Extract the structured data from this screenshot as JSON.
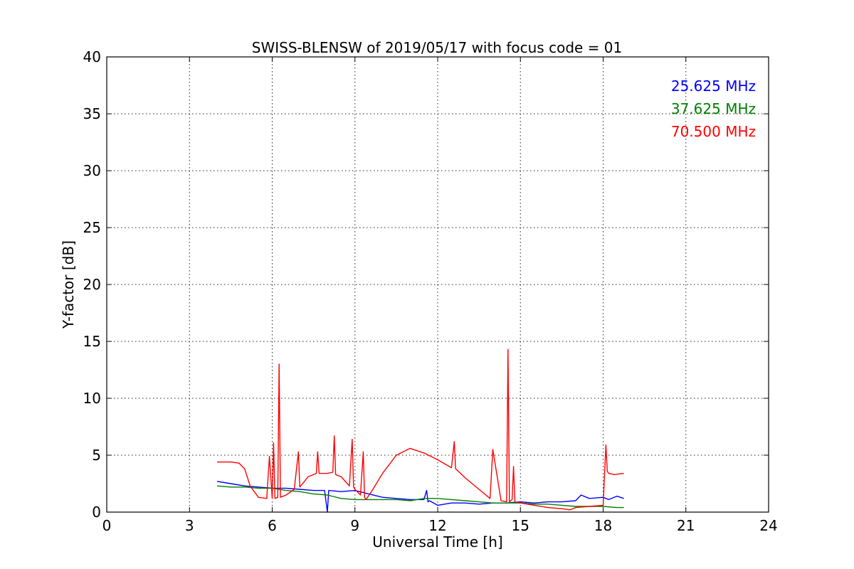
{
  "chart_data": {
    "type": "line",
    "title": "SWISS-BLENSW of 2019/05/17 with focus code = 01",
    "xlabel": "Universal Time [h]",
    "ylabel": "Y-factor [dB]",
    "xlim": [
      0,
      24
    ],
    "ylim": [
      0,
      40
    ],
    "xticks": [
      0,
      3,
      6,
      9,
      12,
      15,
      18,
      21,
      24
    ],
    "yticks": [
      0,
      5,
      10,
      15,
      20,
      25,
      30,
      35,
      40
    ],
    "grid": true,
    "legend_position": "top-right",
    "series": [
      {
        "name": "25.625 MHz",
        "color": "#0000ff",
        "x": [
          4.0,
          4.5,
          5.0,
          5.5,
          6.0,
          6.5,
          7.0,
          7.5,
          7.9,
          8.0,
          8.05,
          8.5,
          9.0,
          9.5,
          10.0,
          10.5,
          11.0,
          11.5,
          11.6,
          11.65,
          11.7,
          12.0,
          12.5,
          13.0,
          13.5,
          14.0,
          14.5,
          15.0,
          15.5,
          16.0,
          16.5,
          17.0,
          17.2,
          17.5,
          18.0,
          18.2,
          18.5,
          18.75
        ],
        "y": [
          2.7,
          2.5,
          2.3,
          2.2,
          2.1,
          2.1,
          2.0,
          1.9,
          1.9,
          0.0,
          1.9,
          1.8,
          1.9,
          1.6,
          1.3,
          1.2,
          1.1,
          1.1,
          1.9,
          0.9,
          1.0,
          0.6,
          0.8,
          0.8,
          0.7,
          0.8,
          0.8,
          0.9,
          0.8,
          0.9,
          0.9,
          1.0,
          1.5,
          1.2,
          1.3,
          1.1,
          1.4,
          1.2
        ]
      },
      {
        "name": "37.625 MHz",
        "color": "#008000",
        "x": [
          4.0,
          4.5,
          5.0,
          5.5,
          6.0,
          6.5,
          7.0,
          7.5,
          8.0,
          8.5,
          9.0,
          9.5,
          10.0,
          10.5,
          11.0,
          11.5,
          12.0,
          12.5,
          13.0,
          13.5,
          14.0,
          14.5,
          15.0,
          15.5,
          16.0,
          16.5,
          17.0,
          17.5,
          18.0,
          18.5,
          18.75
        ],
        "y": [
          2.3,
          2.2,
          2.2,
          2.1,
          2.1,
          1.9,
          1.8,
          1.6,
          1.5,
          1.2,
          1.1,
          1.1,
          1.1,
          1.1,
          1.0,
          1.2,
          1.2,
          1.1,
          1.0,
          0.9,
          0.8,
          0.8,
          0.8,
          0.7,
          0.7,
          0.6,
          0.5,
          0.5,
          0.5,
          0.4,
          0.4
        ]
      },
      {
        "name": "70.500 MHz",
        "color": "#ff0000",
        "x": [
          4.0,
          4.5,
          4.8,
          5.0,
          5.2,
          5.5,
          5.8,
          5.9,
          6.0,
          6.05,
          6.1,
          6.2,
          6.25,
          6.3,
          6.5,
          6.8,
          6.95,
          7.0,
          7.3,
          7.6,
          7.65,
          7.7,
          8.0,
          8.2,
          8.25,
          8.3,
          8.5,
          8.8,
          8.9,
          8.95,
          9.0,
          9.2,
          9.3,
          9.35,
          9.4,
          9.6,
          10.0,
          10.5,
          11.0,
          11.5,
          12.0,
          12.5,
          12.6,
          12.65,
          12.7,
          13.0,
          13.5,
          13.9,
          14.0,
          14.3,
          14.5,
          14.55,
          14.6,
          14.7,
          14.75,
          14.8,
          15.0,
          15.5,
          16.0,
          16.5,
          16.8,
          17.0,
          17.5,
          18.0,
          18.1,
          18.15,
          18.2,
          18.4,
          18.75
        ],
        "y": [
          4.4,
          4.4,
          4.3,
          3.8,
          2.3,
          1.3,
          1.2,
          4.9,
          1.2,
          6.1,
          1.2,
          1.3,
          13.0,
          1.3,
          1.5,
          2.0,
          5.3,
          2.2,
          3.1,
          3.4,
          5.3,
          3.4,
          3.4,
          3.5,
          6.7,
          3.3,
          3.1,
          2.3,
          6.4,
          2.2,
          2.0,
          1.5,
          5.3,
          1.3,
          1.1,
          1.8,
          3.4,
          5.0,
          5.6,
          5.2,
          4.6,
          3.9,
          6.2,
          3.8,
          3.7,
          3.0,
          2.0,
          1.2,
          5.5,
          1.0,
          0.9,
          14.3,
          0.9,
          1.1,
          4.0,
          0.9,
          0.8,
          0.6,
          0.4,
          0.3,
          0.2,
          0.4,
          0.5,
          0.6,
          5.9,
          3.6,
          3.4,
          3.3,
          3.4
        ]
      }
    ]
  }
}
